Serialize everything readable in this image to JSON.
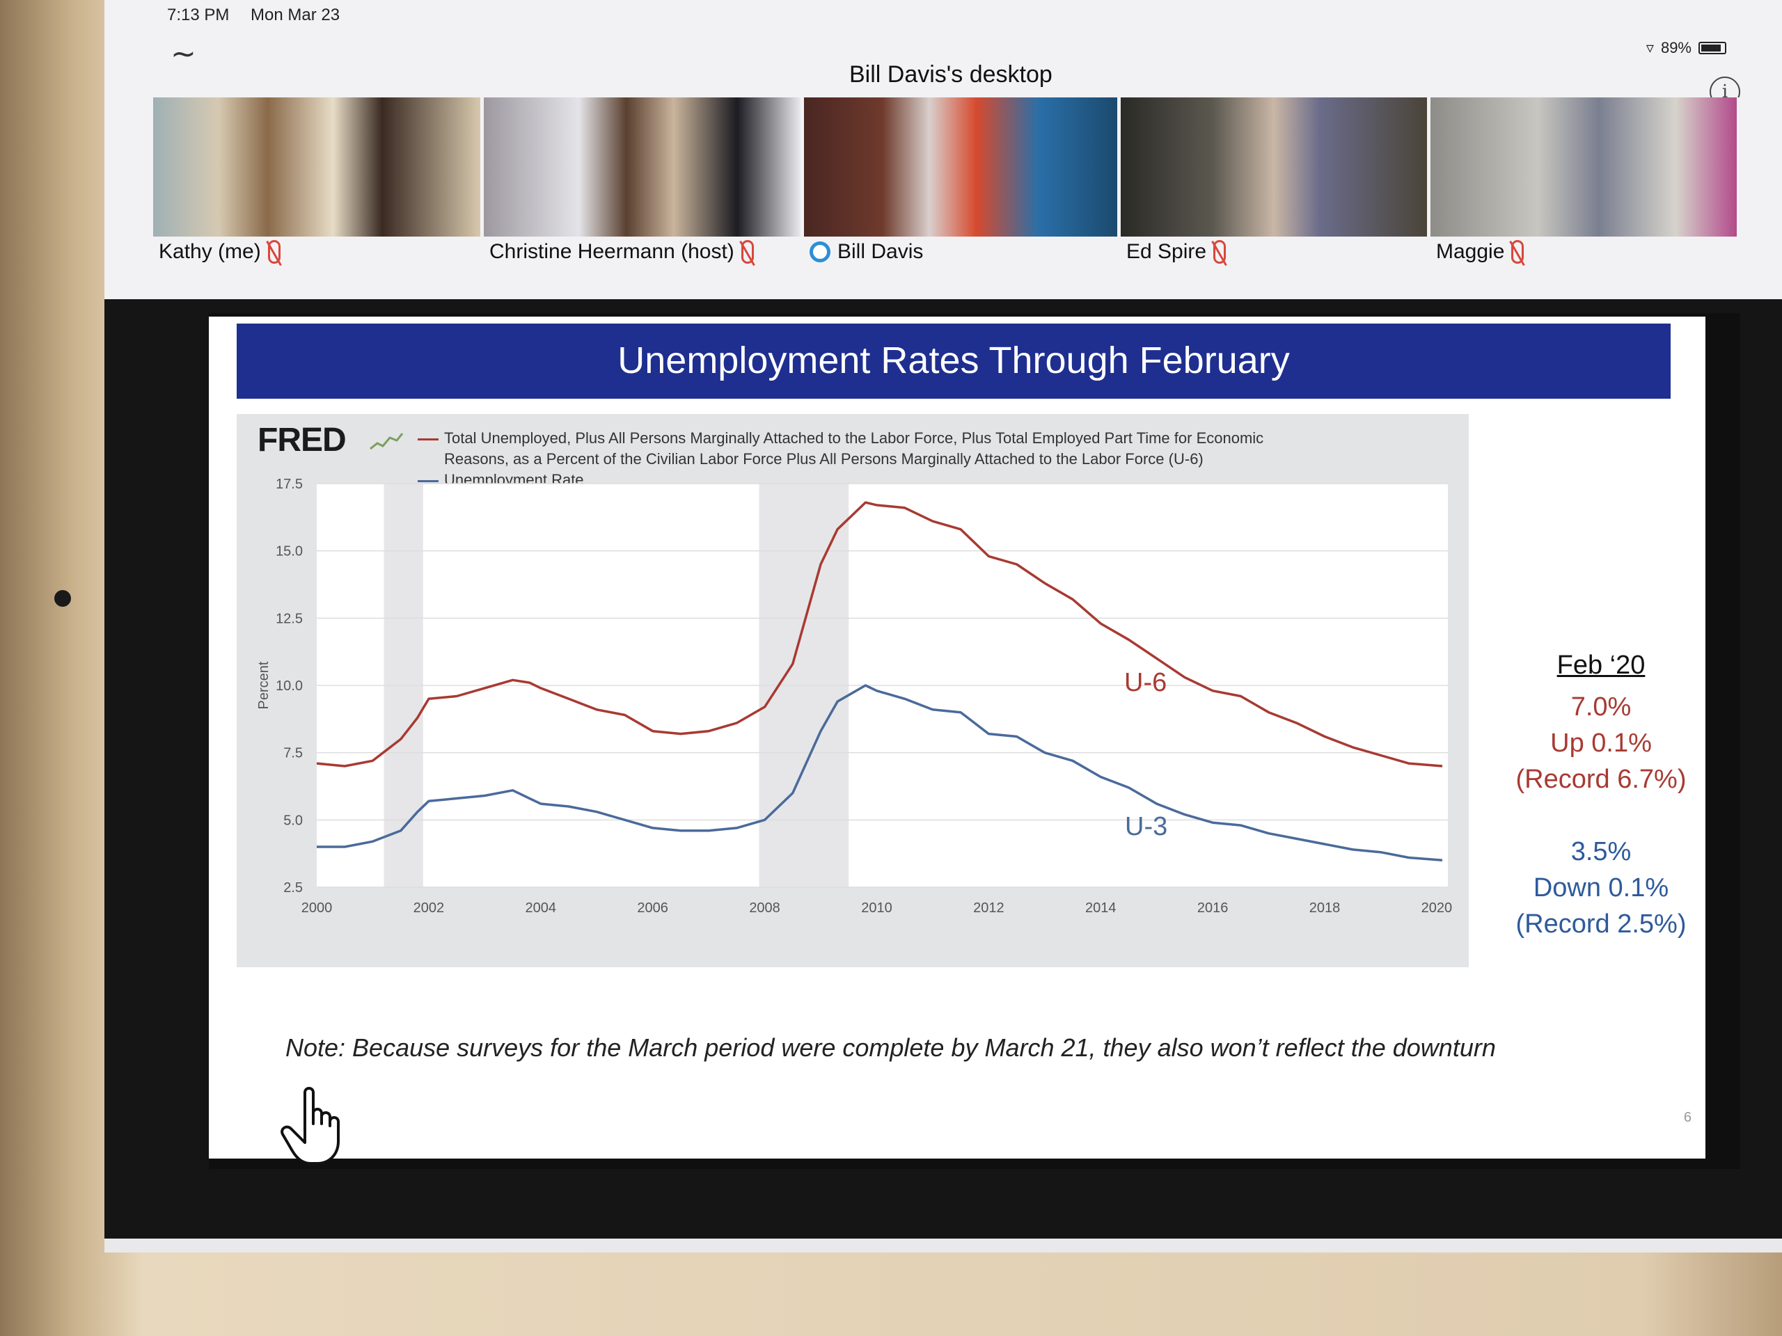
{
  "status_bar": {
    "time": "7:13 PM",
    "date": "Mon Mar 23",
    "battery": "89%"
  },
  "header": {
    "title": "Bill Davis's desktop"
  },
  "participants": [
    {
      "name": "Kathy (me)",
      "muted": true,
      "bg": "#b8a88f"
    },
    {
      "name": "Christine Heermann (host)",
      "muted": true,
      "bg": "#9e9890"
    },
    {
      "name": "Bill Davis",
      "muted": false,
      "speaking": true,
      "bg": "#6a3a2e"
    },
    {
      "name": "Ed Spire",
      "muted": true,
      "bg": "#3d3b36"
    },
    {
      "name": "Maggie",
      "muted": true,
      "bg": "#a5a39c"
    }
  ],
  "slide": {
    "title": "Unemployment Rates Through February",
    "fred_logo": "FRED",
    "legend": {
      "u6_line1": "Total Unemployed, Plus All Persons Marginally Attached to the Labor Force, Plus Total Employed Part Time for Economic",
      "u6_line2": "Reasons, as a Percent of the Civilian Labor Force Plus All Persons Marginally Attached to the Labor Force (U-6)",
      "u3": "Unemployment Rate"
    },
    "label_u6": "U-6",
    "label_u3": "U-3",
    "feb_heading": "Feb ‘20",
    "u6_value": "7.0%",
    "u6_change": "Up 0.1%",
    "u6_record": "(Record 6.7%)",
    "u3_value": "3.5%",
    "u3_change": "Down 0.1%",
    "u3_record": "(Record 2.5%)",
    "note": "Note:  Because surveys for the March period were complete by March 21, they also won’t reflect the downturn",
    "page_number": "6",
    "colors": {
      "u6": "#a83a32",
      "u3": "#4a6a9a",
      "title_bar": "#1f2f8f"
    }
  },
  "chart_data": {
    "type": "line",
    "ylabel": "Percent",
    "xlabel": "",
    "ylim": [
      2.5,
      17.5
    ],
    "xlim": [
      2000,
      2020.2
    ],
    "yticks": [
      "2.5",
      "5.0",
      "7.5",
      "10.0",
      "12.5",
      "15.0",
      "17.5"
    ],
    "xticks": [
      "2000",
      "2002",
      "2004",
      "2006",
      "2008",
      "2010",
      "2012",
      "2014",
      "2016",
      "2018",
      "2020"
    ],
    "recessions": [
      [
        2001.2,
        2001.9
      ],
      [
        2007.9,
        2009.5
      ]
    ],
    "grid": true,
    "legend": "top-left",
    "series": [
      {
        "name": "Total Unemployed, Plus All Persons Marginally Attached to the Labor Force, Plus Total Employed Part Time for Economic Reasons, as a Percent of the Civilian Labor Force Plus All Persons Marginally Attached to the Labor Force (U-6)",
        "x": [
          2000,
          2000.5,
          2001,
          2001.5,
          2001.8,
          2002,
          2002.5,
          2003,
          2003.5,
          2003.8,
          2004,
          2004.5,
          2005,
          2005.5,
          2006,
          2006.5,
          2007,
          2007.5,
          2008,
          2008.5,
          2009,
          2009.3,
          2009.8,
          2010,
          2010.5,
          2011,
          2011.5,
          2012,
          2012.5,
          2013,
          2013.5,
          2014,
          2014.5,
          2015,
          2015.5,
          2016,
          2016.5,
          2017,
          2017.5,
          2018,
          2018.5,
          2019,
          2019.5,
          2020.1
        ],
        "values": [
          7.1,
          7.0,
          7.2,
          8.0,
          8.8,
          9.5,
          9.6,
          9.9,
          10.2,
          10.1,
          9.9,
          9.5,
          9.1,
          8.9,
          8.3,
          8.2,
          8.3,
          8.6,
          9.2,
          10.8,
          14.5,
          15.8,
          16.8,
          16.7,
          16.6,
          16.1,
          15.8,
          14.8,
          14.5,
          13.8,
          13.2,
          12.3,
          11.7,
          11.0,
          10.3,
          9.8,
          9.6,
          9.0,
          8.6,
          8.1,
          7.7,
          7.4,
          7.1,
          7.0
        ]
      },
      {
        "name": "Unemployment Rate",
        "x": [
          2000,
          2000.5,
          2001,
          2001.5,
          2001.8,
          2002,
          2002.5,
          2003,
          2003.5,
          2003.8,
          2004,
          2004.5,
          2005,
          2005.5,
          2006,
          2006.5,
          2007,
          2007.5,
          2008,
          2008.5,
          2009,
          2009.3,
          2009.8,
          2010,
          2010.5,
          2011,
          2011.5,
          2012,
          2012.5,
          2013,
          2013.5,
          2014,
          2014.5,
          2015,
          2015.5,
          2016,
          2016.5,
          2017,
          2017.5,
          2018,
          2018.5,
          2019,
          2019.5,
          2020.1
        ],
        "values": [
          4.0,
          4.0,
          4.2,
          4.6,
          5.3,
          5.7,
          5.8,
          5.9,
          6.1,
          5.8,
          5.6,
          5.5,
          5.3,
          5.0,
          4.7,
          4.6,
          4.6,
          4.7,
          5.0,
          6.0,
          8.3,
          9.4,
          10.0,
          9.8,
          9.5,
          9.1,
          9.0,
          8.2,
          8.1,
          7.5,
          7.2,
          6.6,
          6.2,
          5.6,
          5.2,
          4.9,
          4.8,
          4.5,
          4.3,
          4.1,
          3.9,
          3.8,
          3.6,
          3.5
        ]
      }
    ]
  }
}
